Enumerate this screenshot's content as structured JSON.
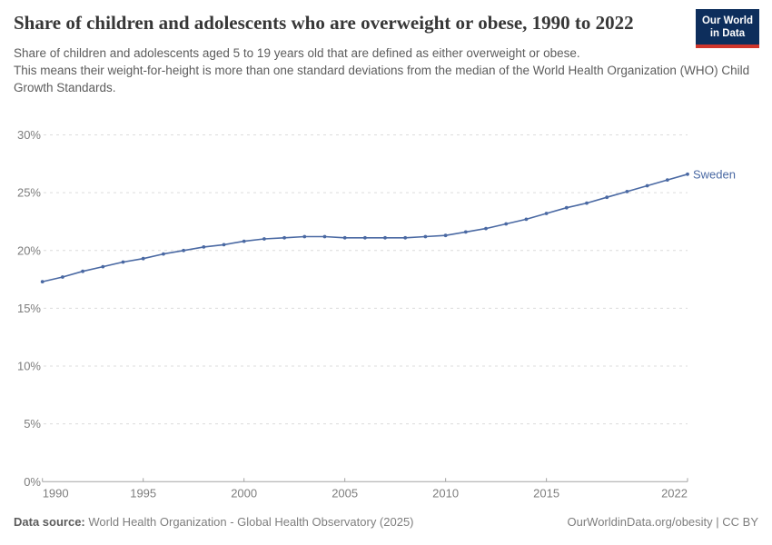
{
  "header": {
    "title": "Share of children and adolescents who are overweight or obese, 1990 to 2022",
    "subtitle_line1": "Share of children and adolescents aged 5 to 19 years old that are defined as either overweight or obese.",
    "subtitle_line2": "This means their weight-for-height is more than one standard deviations from the median of the World Health Organization (WHO) Child Growth Standards."
  },
  "logo": {
    "line1": "Our World",
    "line2": "in Data",
    "bg_color": "#0d2e5c",
    "accent_color": "#cf352b"
  },
  "footer": {
    "datasource_label": "Data source:",
    "datasource_value": " World Health Organization - Global Health Observatory (2025)",
    "attribution": "OurWorldinData.org/obesity | CC BY"
  },
  "chart_data": {
    "type": "line",
    "title": "Share of children and adolescents who are overweight or obese, 1990 to 2022",
    "xlabel": "",
    "ylabel": "",
    "xlim": [
      1990,
      2022
    ],
    "ylim": [
      0,
      30
    ],
    "grid": "horizontal-dashed",
    "legend_position": "end-of-line-label",
    "x_ticks": [
      1990,
      1995,
      2000,
      2005,
      2010,
      2015,
      2022
    ],
    "y_ticks": [
      0,
      5,
      10,
      15,
      20,
      25,
      30
    ],
    "y_tick_suffix": "%",
    "x": [
      1990,
      1991,
      1992,
      1993,
      1994,
      1995,
      1996,
      1997,
      1998,
      1999,
      2000,
      2001,
      2002,
      2003,
      2004,
      2005,
      2006,
      2007,
      2008,
      2009,
      2010,
      2011,
      2012,
      2013,
      2014,
      2015,
      2016,
      2017,
      2018,
      2019,
      2020,
      2021,
      2022
    ],
    "series": [
      {
        "name": "Sweden",
        "color": "#4a69a3",
        "values": [
          17.3,
          17.7,
          18.2,
          18.6,
          19.0,
          19.3,
          19.7,
          20.0,
          20.3,
          20.5,
          20.8,
          21.0,
          21.1,
          21.2,
          21.2,
          21.1,
          21.1,
          21.1,
          21.1,
          21.2,
          21.3,
          21.6,
          21.9,
          22.3,
          22.7,
          23.2,
          23.7,
          24.1,
          24.6,
          25.1,
          25.6,
          26.1,
          26.6
        ]
      }
    ],
    "colors": {
      "gridline": "#dcdcdc",
      "axis": "#a3a3a3",
      "tick_label": "#7e7e7e"
    }
  }
}
